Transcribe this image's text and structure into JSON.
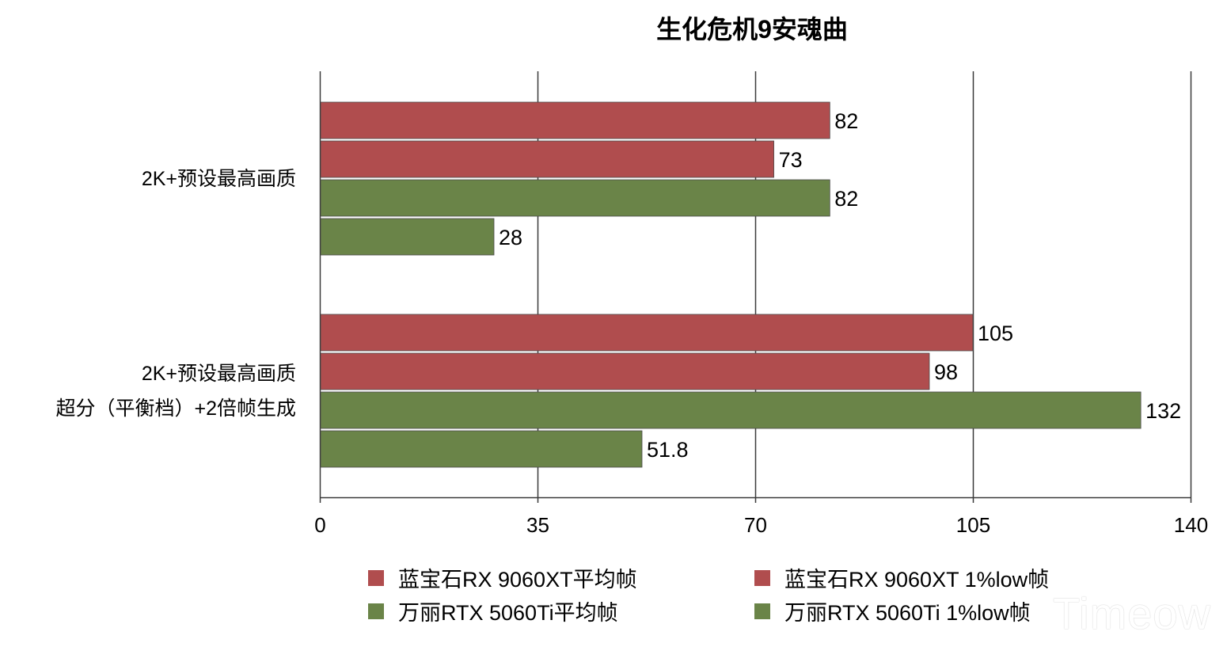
{
  "chart_data": {
    "type": "bar",
    "orientation": "horizontal",
    "title": "生化危机9安魂曲",
    "categories": [
      [
        "2K+预设最高画质"
      ],
      [
        "2K+预设最高画质",
        "超分（平衡档）+2倍帧生成"
      ]
    ],
    "series": [
      {
        "name": "蓝宝石RX 9060XT平均帧",
        "color": "#b04d4e",
        "values": [
          82,
          105
        ]
      },
      {
        "name": "蓝宝石RX 9060XT 1%low帧",
        "color": "#b04d4e",
        "values": [
          73,
          98
        ]
      },
      {
        "name": "万丽RTX 5060Ti平均帧",
        "color": "#6a8448",
        "values": [
          82,
          132
        ]
      },
      {
        "name": "万丽RTX 5060Ti 1%low帧",
        "color": "#6a8448",
        "values": [
          28,
          51.8
        ]
      }
    ],
    "xlim": [
      0,
      140
    ],
    "xticks": [
      0,
      35,
      70,
      105,
      140
    ],
    "xlabel": "",
    "ylabel": "",
    "grid": true,
    "legend_position": "bottom"
  },
  "watermark": "Timeow"
}
